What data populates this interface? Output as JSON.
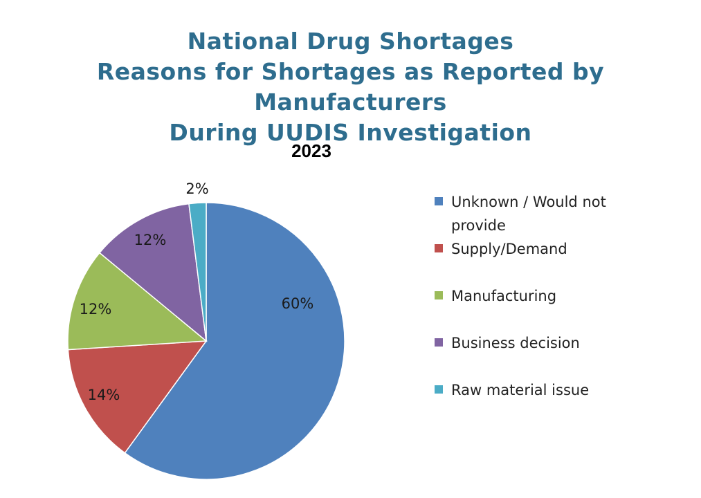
{
  "header": {
    "title_lines": [
      "National Drug Shortages",
      "Reasons for Shortages as Reported by Manufacturers",
      "During UUDIS Investigation"
    ]
  },
  "chart_data": {
    "type": "pie",
    "title": "National Drug Shortages Reasons for Shortages as Reported by Manufacturers During UUDIS Investigation",
    "subtitle": "2023",
    "legend_position": "right",
    "slices": [
      {
        "name": "Unknown / Would not provide",
        "value": 60,
        "label": "60%",
        "color": "#4f81bd"
      },
      {
        "name": "Supply/Demand",
        "value": 14,
        "label": "14%",
        "color": "#c0504d"
      },
      {
        "name": "Manufacturing",
        "value": 12,
        "label": "12%",
        "color": "#9bbb59"
      },
      {
        "name": "Business decision",
        "value": 12,
        "label": "12%",
        "color": "#8064a2"
      },
      {
        "name": "Raw material issue",
        "value": 2,
        "label": "2%",
        "color": "#4bacc6"
      }
    ]
  }
}
